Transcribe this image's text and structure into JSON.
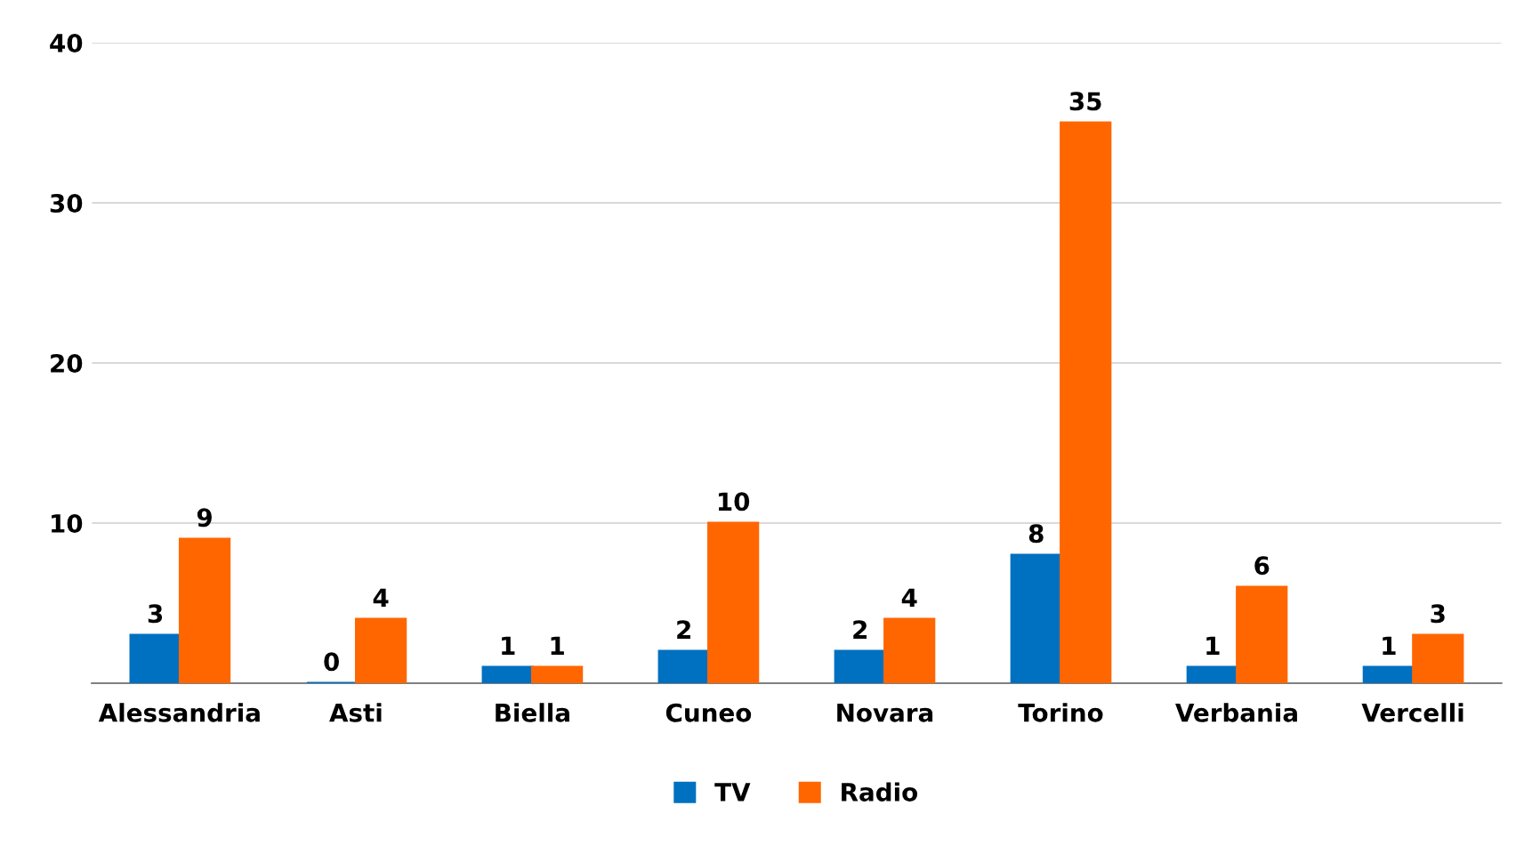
{
  "chart_data": {
    "type": "bar",
    "categories": [
      "Alessandria",
      "Asti",
      "Biella",
      "Cuneo",
      "Novara",
      "Torino",
      "Verbania",
      "Vercelli"
    ],
    "series": [
      {
        "name": "TV",
        "color": "#0070c0",
        "values": [
          3,
          0,
          1,
          2,
          2,
          8,
          1,
          1
        ]
      },
      {
        "name": "Radio",
        "color": "#ff6600",
        "values": [
          9,
          4,
          1,
          10,
          4,
          35,
          6,
          3
        ]
      }
    ],
    "ylim": [
      0,
      40
    ],
    "yticks": [
      {
        "value": 0,
        "label": null
      },
      10,
      20,
      30,
      40
    ],
    "grid": "y",
    "legend": "bottom",
    "data_labels": true
  }
}
